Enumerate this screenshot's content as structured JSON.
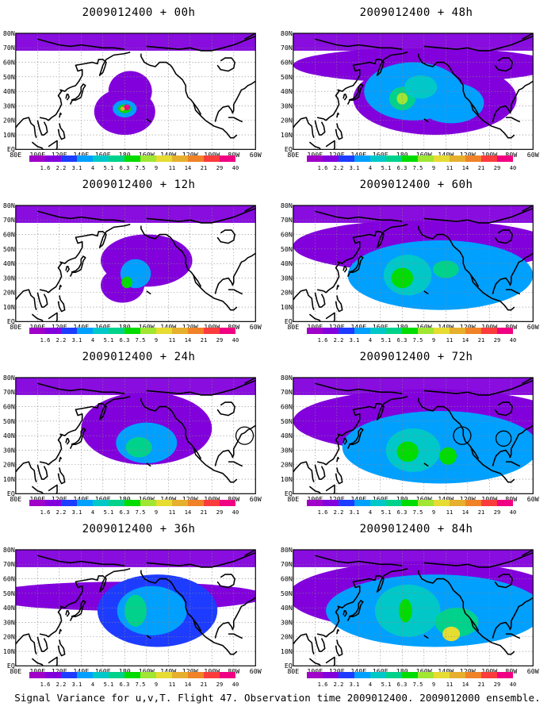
{
  "panels": [
    {
      "title": "2009012400 + 00h",
      "blobs": [
        {
          "cx": 180,
          "cy": 26,
          "rx": 28,
          "ry": 16,
          "lvl": 1
        },
        {
          "cx": 185,
          "cy": 40,
          "rx": 20,
          "ry": 14,
          "lvl": 1
        },
        {
          "cx": 180,
          "cy": 28,
          "rx": 11,
          "ry": 6,
          "lvl": 3
        },
        {
          "cx": 180,
          "cy": 28,
          "rx": 6,
          "ry": 3,
          "lvl": 6
        },
        {
          "cx": 182,
          "cy": 29,
          "rx": 3,
          "ry": 2,
          "lvl": 12
        },
        {
          "cx": 178,
          "cy": 28,
          "rx": 2,
          "ry": 1.5,
          "lvl": 9
        }
      ]
    },
    {
      "title": "2009012400 + 48h",
      "blobs": [
        {
          "cx": 200,
          "cy": 58,
          "rx": 120,
          "ry": 12,
          "lvl": 1
        },
        {
          "cx": 210,
          "cy": 35,
          "rx": 75,
          "ry": 25,
          "lvl": 1
        },
        {
          "cx": 190,
          "cy": 40,
          "rx": 45,
          "ry": 20,
          "lvl": 3
        },
        {
          "cx": 225,
          "cy": 32,
          "rx": 30,
          "ry": 14,
          "lvl": 3
        },
        {
          "cx": 180,
          "cy": 35,
          "rx": 12,
          "ry": 8,
          "lvl": 5
        },
        {
          "cx": 197,
          "cy": 43,
          "rx": 15,
          "ry": 8,
          "lvl": 4
        },
        {
          "cx": 180,
          "cy": 35,
          "rx": 5,
          "ry": 4,
          "lvl": 7
        }
      ]
    },
    {
      "title": "2009012400 + 12h",
      "blobs": [
        {
          "cx": 200,
          "cy": 42,
          "rx": 42,
          "ry": 18,
          "lvl": 1
        },
        {
          "cx": 178,
          "cy": 25,
          "rx": 20,
          "ry": 12,
          "lvl": 1
        },
        {
          "cx": 190,
          "cy": 33,
          "rx": 14,
          "ry": 10,
          "lvl": 3
        },
        {
          "cx": 182,
          "cy": 27,
          "rx": 5,
          "ry": 4,
          "lvl": 6
        }
      ]
    },
    {
      "title": "2009012400 + 60h",
      "blobs": [
        {
          "cx": 200,
          "cy": 52,
          "rx": 120,
          "ry": 18,
          "lvl": 1
        },
        {
          "cx": 215,
          "cy": 32,
          "rx": 85,
          "ry": 24,
          "lvl": 3
        },
        {
          "cx": 185,
          "cy": 32,
          "rx": 22,
          "ry": 14,
          "lvl": 4
        },
        {
          "cx": 180,
          "cy": 30,
          "rx": 10,
          "ry": 7,
          "lvl": 6
        },
        {
          "cx": 220,
          "cy": 36,
          "rx": 12,
          "ry": 6,
          "lvl": 5
        }
      ]
    },
    {
      "title": "2009012400 + 24h",
      "blobs": [
        {
          "cx": 200,
          "cy": 45,
          "rx": 60,
          "ry": 25,
          "lvl": 1
        },
        {
          "cx": 200,
          "cy": 35,
          "rx": 28,
          "ry": 14,
          "lvl": 3
        },
        {
          "cx": 193,
          "cy": 32,
          "rx": 12,
          "ry": 7,
          "lvl": 5
        }
      ],
      "circles": [
        {
          "cx": 290,
          "cy": 40,
          "r": 8
        }
      ]
    },
    {
      "title": "2009012400 + 72h",
      "blobs": [
        {
          "cx": 205,
          "cy": 50,
          "rx": 125,
          "ry": 22,
          "lvl": 1
        },
        {
          "cx": 215,
          "cy": 32,
          "rx": 90,
          "ry": 25,
          "lvl": 3
        },
        {
          "cx": 190,
          "cy": 30,
          "rx": 25,
          "ry": 15,
          "lvl": 4
        },
        {
          "cx": 185,
          "cy": 29,
          "rx": 10,
          "ry": 7,
          "lvl": 6
        },
        {
          "cx": 222,
          "cy": 26,
          "rx": 8,
          "ry": 6,
          "lvl": 6
        }
      ],
      "circles": [
        {
          "cx": 235,
          "cy": 40,
          "r": 8
        },
        {
          "cx": 273,
          "cy": 38,
          "r": 7
        }
      ]
    },
    {
      "title": "2009012400 + 36h",
      "blobs": [
        {
          "cx": 180,
          "cy": 48,
          "rx": 130,
          "ry": 10,
          "lvl": 1
        },
        {
          "cx": 210,
          "cy": 38,
          "rx": 55,
          "ry": 25,
          "lvl": 2
        },
        {
          "cx": 205,
          "cy": 38,
          "rx": 32,
          "ry": 17,
          "lvl": 3
        },
        {
          "cx": 190,
          "cy": 38,
          "rx": 10,
          "ry": 11,
          "lvl": 5
        }
      ]
    },
    {
      "title": "2009012400 + 84h",
      "blobs": [
        {
          "cx": 200,
          "cy": 48,
          "rx": 125,
          "ry": 24,
          "lvl": 1
        },
        {
          "cx": 210,
          "cy": 38,
          "rx": 100,
          "ry": 25,
          "lvl": 3
        },
        {
          "cx": 185,
          "cy": 38,
          "rx": 30,
          "ry": 18,
          "lvl": 4
        },
        {
          "cx": 230,
          "cy": 30,
          "rx": 20,
          "ry": 10,
          "lvl": 5
        },
        {
          "cx": 225,
          "cy": 22,
          "rx": 8,
          "ry": 5,
          "lvl": 8
        },
        {
          "cx": 183,
          "cy": 38,
          "rx": 6,
          "ry": 8,
          "lvl": 6
        }
      ]
    }
  ],
  "lon_labels": [
    "80E",
    "100E",
    "120E",
    "140E",
    "160E",
    "180",
    "160W",
    "140W",
    "120W",
    "100W",
    "80W",
    "60W"
  ],
  "lat_labels": [
    "EQ",
    "10N",
    "20N",
    "30N",
    "40N",
    "50N",
    "60N",
    "70N",
    "80N"
  ],
  "colorbar": {
    "labels": [
      "1.6",
      "2.2",
      "3.1",
      "4",
      "5.1",
      "6.3",
      "7.5",
      "9",
      "11",
      "14",
      "21",
      "29",
      "40"
    ],
    "colors": [
      "#a000c8",
      "#8200dc",
      "#1e3cff",
      "#00a0ff",
      "#00c8c8",
      "#00d28c",
      "#00dc00",
      "#a0e632",
      "#e6dc32",
      "#e6af2d",
      "#f08228",
      "#fa3c3c",
      "#f00082"
    ]
  },
  "footer": "Signal Variance for u,v,T. Flight 47. Observation time 2009012400. 2009012000 ensemble."
}
